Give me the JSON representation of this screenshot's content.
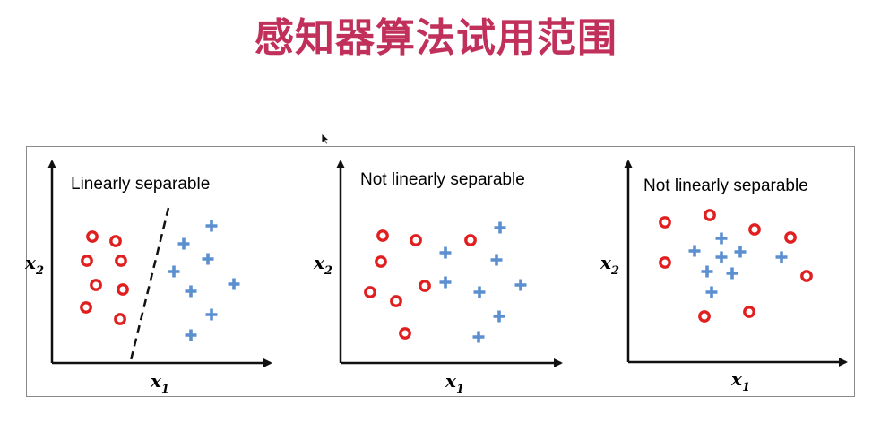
{
  "slide": {
    "title": "感知器算法试用范围",
    "title_color": "#c0305a"
  },
  "colors": {
    "circle": "#e02020",
    "plus": "#5b8fd0",
    "axis": "#111111",
    "frame": "#8a8a8a"
  },
  "icons": {
    "cursor": "mouse-pointer-icon"
  },
  "panels": [
    {
      "title": "Linearly separable",
      "x_axis_label": "x",
      "x_axis_subscript": "1",
      "y_axis_label": "x",
      "y_axis_subscript": "2",
      "separator_line": true,
      "circles": [
        [
          103,
          264
        ],
        [
          129,
          269
        ],
        [
          97,
          291
        ],
        [
          135,
          291
        ],
        [
          107,
          318
        ],
        [
          137,
          323
        ],
        [
          96,
          343
        ],
        [
          134,
          356
        ]
      ],
      "pluses": [
        [
          236,
          252
        ],
        [
          205,
          272
        ],
        [
          232,
          289
        ],
        [
          194,
          303
        ],
        [
          213,
          325
        ],
        [
          261,
          317
        ],
        [
          236,
          351
        ],
        [
          213,
          374
        ]
      ]
    },
    {
      "title": "Not linearly separable",
      "x_axis_label": "x",
      "x_axis_subscript": "1",
      "y_axis_label": "x",
      "y_axis_subscript": "2",
      "separator_line": false,
      "circles": [
        [
          427,
          263
        ],
        [
          464,
          268
        ],
        [
          525,
          268
        ],
        [
          425,
          292
        ],
        [
          474,
          319
        ],
        [
          413,
          326
        ],
        [
          442,
          336
        ],
        [
          452,
          372
        ]
      ],
      "pluses": [
        [
          558,
          254
        ],
        [
          497,
          282
        ],
        [
          554,
          290
        ],
        [
          497,
          315
        ],
        [
          535,
          326
        ],
        [
          581,
          318
        ],
        [
          557,
          353
        ],
        [
          534,
          376
        ]
      ]
    },
    {
      "title": "Not linearly separable",
      "x_axis_label": "x",
      "x_axis_subscript": "1",
      "y_axis_label": "x",
      "y_axis_subscript": "2",
      "separator_line": false,
      "circles": [
        [
          742,
          248
        ],
        [
          792,
          240
        ],
        [
          842,
          256
        ],
        [
          882,
          265
        ],
        [
          742,
          293
        ],
        [
          900,
          308
        ],
        [
          786,
          353
        ],
        [
          836,
          348
        ]
      ],
      "pluses": [
        [
          805,
          266
        ],
        [
          775,
          280
        ],
        [
          805,
          287
        ],
        [
          826,
          281
        ],
        [
          872,
          287
        ],
        [
          789,
          303
        ],
        [
          817,
          305
        ],
        [
          794,
          326
        ]
      ]
    }
  ]
}
